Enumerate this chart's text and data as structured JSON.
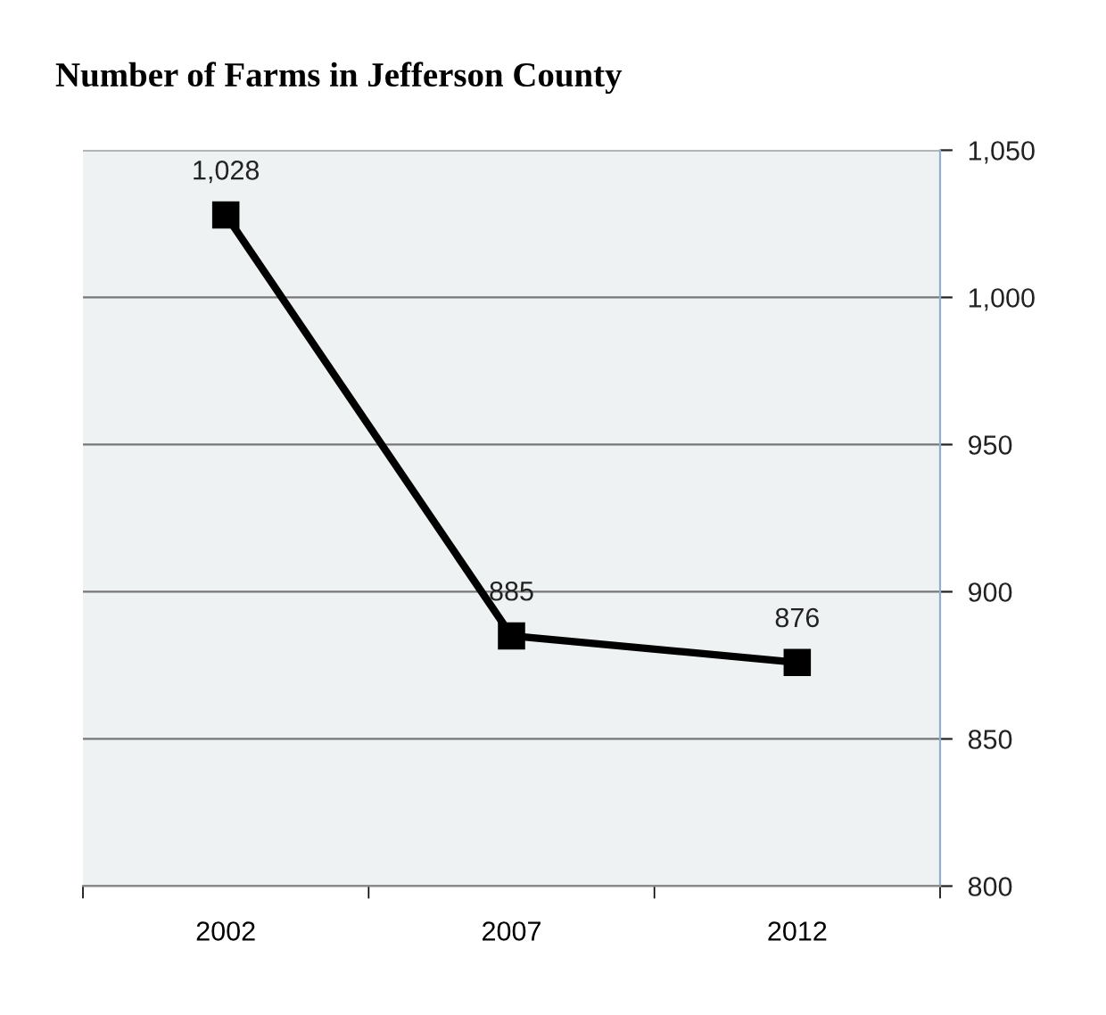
{
  "chart_data": {
    "type": "line",
    "title": "Number of Farms in Jefferson County",
    "categories": [
      "2002",
      "2007",
      "2012"
    ],
    "series": [
      {
        "color": "#000000",
        "values": [
          1028,
          885,
          876
        ],
        "value_labels": [
          "1,028",
          "885",
          "876"
        ]
      }
    ],
    "ylim": [
      800,
      1050
    ],
    "yticks": [
      {
        "value": 800,
        "label": "800"
      },
      {
        "value": 850,
        "label": "850"
      },
      {
        "value": 900,
        "label": "900"
      },
      {
        "value": 950,
        "label": "950"
      },
      {
        "value": 1000,
        "label": "1,000"
      },
      {
        "value": 1050,
        "label": "1,050"
      }
    ],
    "grid": "y",
    "marker": "square",
    "line_style": "solid",
    "legend": false
  }
}
